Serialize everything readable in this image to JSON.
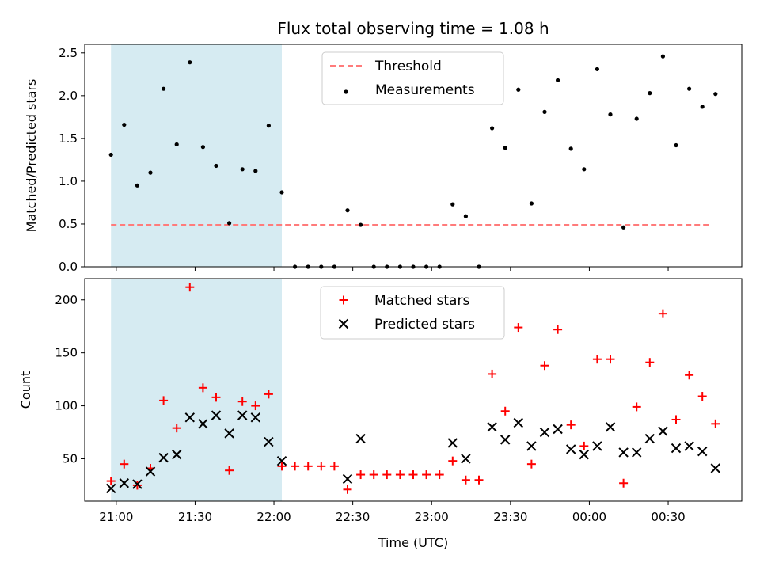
{
  "chart_data": [
    {
      "type": "scatter",
      "title": "Flux total observing time = 1.08 h",
      "xlabel": "",
      "ylabel": "Matched/Predicted stars",
      "ylim": [
        0,
        2.6
      ],
      "yticks": [
        0.0,
        0.5,
        1.0,
        1.5,
        2.0,
        2.5
      ],
      "ytick_labels": [
        "0.0",
        "0.5",
        "1.0",
        "1.5",
        "2.0",
        "2.5"
      ],
      "highlight_span_minutes": [
        -2,
        63
      ],
      "threshold": {
        "name": "Threshold",
        "value": 0.49,
        "x_range_minutes": [
          -2,
          226
        ],
        "color": "#ff7b7b",
        "style": "dashed"
      },
      "series": [
        {
          "name": "Measurements",
          "color": "#000000",
          "marker": "dot",
          "x_minutes": [
            -2,
            3,
            8,
            13,
            18,
            23,
            28,
            33,
            38,
            43,
            48,
            53,
            58,
            63,
            68,
            73,
            78,
            83,
            88,
            93,
            98,
            103,
            108,
            113,
            118,
            123,
            128,
            133,
            138,
            143,
            148,
            153,
            158,
            163,
            168,
            173,
            178,
            183,
            188,
            193,
            198,
            203,
            208,
            213,
            218,
            223,
            228
          ],
          "y": [
            1.31,
            1.66,
            0.95,
            1.1,
            2.08,
            1.43,
            2.39,
            1.4,
            1.18,
            0.51,
            1.14,
            1.12,
            1.65,
            0.87,
            0.0,
            0.0,
            0.0,
            0.0,
            0.66,
            0.49,
            0.0,
            0.0,
            0.0,
            0.0,
            0.0,
            0.0,
            0.73,
            0.59,
            0.0,
            1.62,
            1.39,
            2.07,
            0.74,
            1.81,
            2.18,
            1.38,
            1.14,
            2.31,
            1.78,
            0.46,
            1.73,
            2.03,
            2.46,
            1.42,
            2.08,
            1.87,
            2.02
          ]
        }
      ]
    },
    {
      "type": "scatter",
      "title": "",
      "xlabel": "Time (UTC)",
      "ylabel": "Count",
      "ylim": [
        10,
        220
      ],
      "yticks": [
        50,
        100,
        150,
        200
      ],
      "ytick_labels": [
        "50",
        "100",
        "150",
        "200"
      ],
      "x_axis": {
        "range_minutes": [
          -12,
          238
        ],
        "origin_time": "21:00",
        "ticks_minutes": [
          0,
          30,
          60,
          90,
          120,
          150,
          180,
          210
        ],
        "tick_labels": [
          "21:00",
          "21:30",
          "22:00",
          "22:30",
          "23:00",
          "23:30",
          "00:00",
          "00:30"
        ]
      },
      "highlight_span_minutes": [
        -2,
        63
      ],
      "legend_position": "top-center",
      "series": [
        {
          "name": "Matched stars",
          "color": "#ff0000",
          "marker": "plus",
          "x_minutes": [
            -2,
            3,
            8,
            13,
            18,
            23,
            28,
            33,
            38,
            43,
            48,
            53,
            58,
            63,
            68,
            73,
            78,
            83,
            88,
            93,
            98,
            103,
            108,
            113,
            118,
            123,
            128,
            133,
            138,
            143,
            148,
            153,
            158,
            163,
            168,
            173,
            178,
            183,
            188,
            193,
            198,
            203,
            208,
            213,
            218,
            223,
            228
          ],
          "y": [
            29,
            45,
            25,
            41,
            105,
            79,
            212,
            117,
            108,
            39,
            104,
            100,
            111,
            43,
            43,
            43,
            43,
            43,
            21,
            35,
            35,
            35,
            35,
            35,
            35,
            35,
            48,
            30,
            30,
            130,
            95,
            174,
            45,
            138,
            172,
            82,
            62,
            144,
            144,
            27,
            99,
            141,
            187,
            87,
            129,
            109,
            83
          ]
        },
        {
          "name": "Predicted stars",
          "color": "#000000",
          "marker": "x",
          "x_minutes": [
            -2,
            3,
            8,
            13,
            18,
            23,
            28,
            33,
            38,
            43,
            48,
            53,
            58,
            63,
            88,
            93,
            128,
            133,
            143,
            148,
            153,
            158,
            163,
            168,
            173,
            178,
            183,
            188,
            193,
            198,
            203,
            208,
            213,
            218,
            223,
            228
          ],
          "y": [
            22,
            27,
            26,
            38,
            51,
            54,
            89,
            83,
            91,
            74,
            91,
            89,
            66,
            48,
            31,
            69,
            65,
            50,
            80,
            68,
            84,
            62,
            75,
            78,
            59,
            54,
            62,
            80,
            56,
            56,
            69,
            76,
            60,
            62,
            57,
            41
          ]
        }
      ]
    }
  ]
}
